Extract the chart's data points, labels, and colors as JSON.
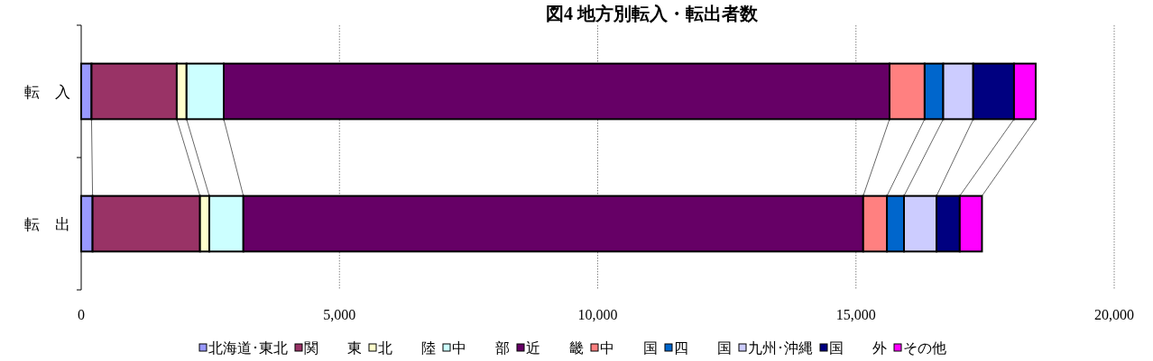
{
  "chart_data": {
    "type": "bar",
    "title": "図4 地方別転入・転出者数",
    "orientation": "horizontal",
    "stacked": true,
    "categories": [
      "転　入",
      "転　出"
    ],
    "series": [
      {
        "name": "北海道･東北",
        "color": "#9999ff",
        "values": [
          200,
          220
        ]
      },
      {
        "name": "関　　東",
        "color": "#993366",
        "values": [
          1650,
          2080
        ]
      },
      {
        "name": "北　　陸",
        "color": "#ffffcc",
        "values": [
          190,
          180
        ]
      },
      {
        "name": "中　　部",
        "color": "#ccffff",
        "values": [
          720,
          660
        ]
      },
      {
        "name": "近　　畿",
        "color": "#660066",
        "values": [
          12890,
          12000
        ]
      },
      {
        "name": "中　　国",
        "color": "#ff8080",
        "values": [
          680,
          460
        ]
      },
      {
        "name": "四　　国",
        "color": "#0066cc",
        "values": [
          360,
          330
        ]
      },
      {
        "name": "九州･沖縄",
        "color": "#ccccff",
        "values": [
          580,
          630
        ]
      },
      {
        "name": "国　　外",
        "color": "#000080",
        "values": [
          790,
          450
        ]
      },
      {
        "name": "その他",
        "color": "#ff00ff",
        "values": [
          420,
          430
        ]
      }
    ],
    "xlim": [
      0,
      20000
    ],
    "xticks": [
      0,
      {
        "value": 5000,
        "label": "5,000"
      },
      {
        "value": 10000,
        "label": "10,000"
      },
      {
        "value": 15000,
        "label": "15,000"
      },
      {
        "value": 20000,
        "label": "20,000"
      }
    ],
    "grid": "x",
    "legend": "bottom"
  }
}
